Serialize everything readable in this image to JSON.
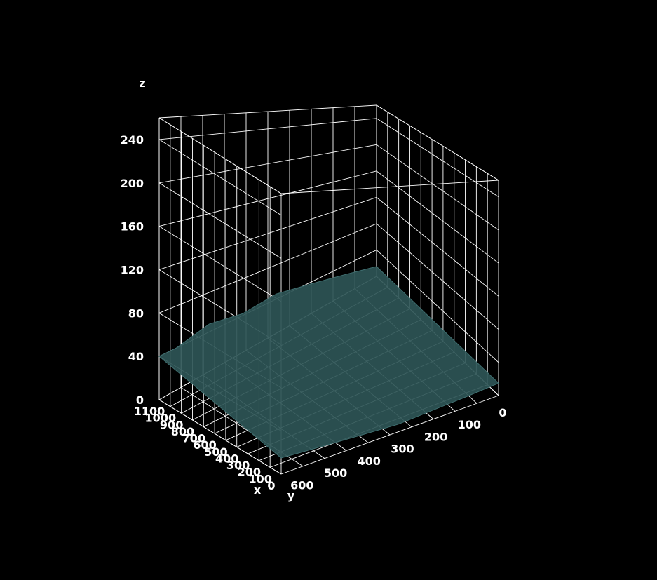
{
  "chart_data": {
    "type": "surface",
    "title": "",
    "background": "#000000",
    "grid": true,
    "surface_color": "#2e5556",
    "axes": {
      "x": {
        "label": "x",
        "range": [
          0,
          1100
        ],
        "ticks": [
          0,
          100,
          200,
          300,
          400,
          500,
          600,
          700,
          800,
          900,
          1000,
          1100
        ]
      },
      "y": {
        "label": "y",
        "range": [
          0,
          650
        ],
        "ticks": [
          0,
          100,
          200,
          300,
          400,
          500,
          600
        ]
      },
      "z": {
        "label": "z",
        "range": [
          0,
          260
        ],
        "ticks": [
          0,
          40,
          80,
          120,
          160,
          200,
          240
        ]
      }
    },
    "surface_profile": {
      "y": [
        0,
        100,
        200,
        300,
        400,
        500,
        600,
        650
      ],
      "z_far_edge": [
        15,
        28,
        38,
        46,
        42,
        48,
        40,
        40
      ],
      "z_near_edge": [
        15,
        12,
        10,
        8,
        10,
        12,
        14,
        15
      ]
    }
  }
}
